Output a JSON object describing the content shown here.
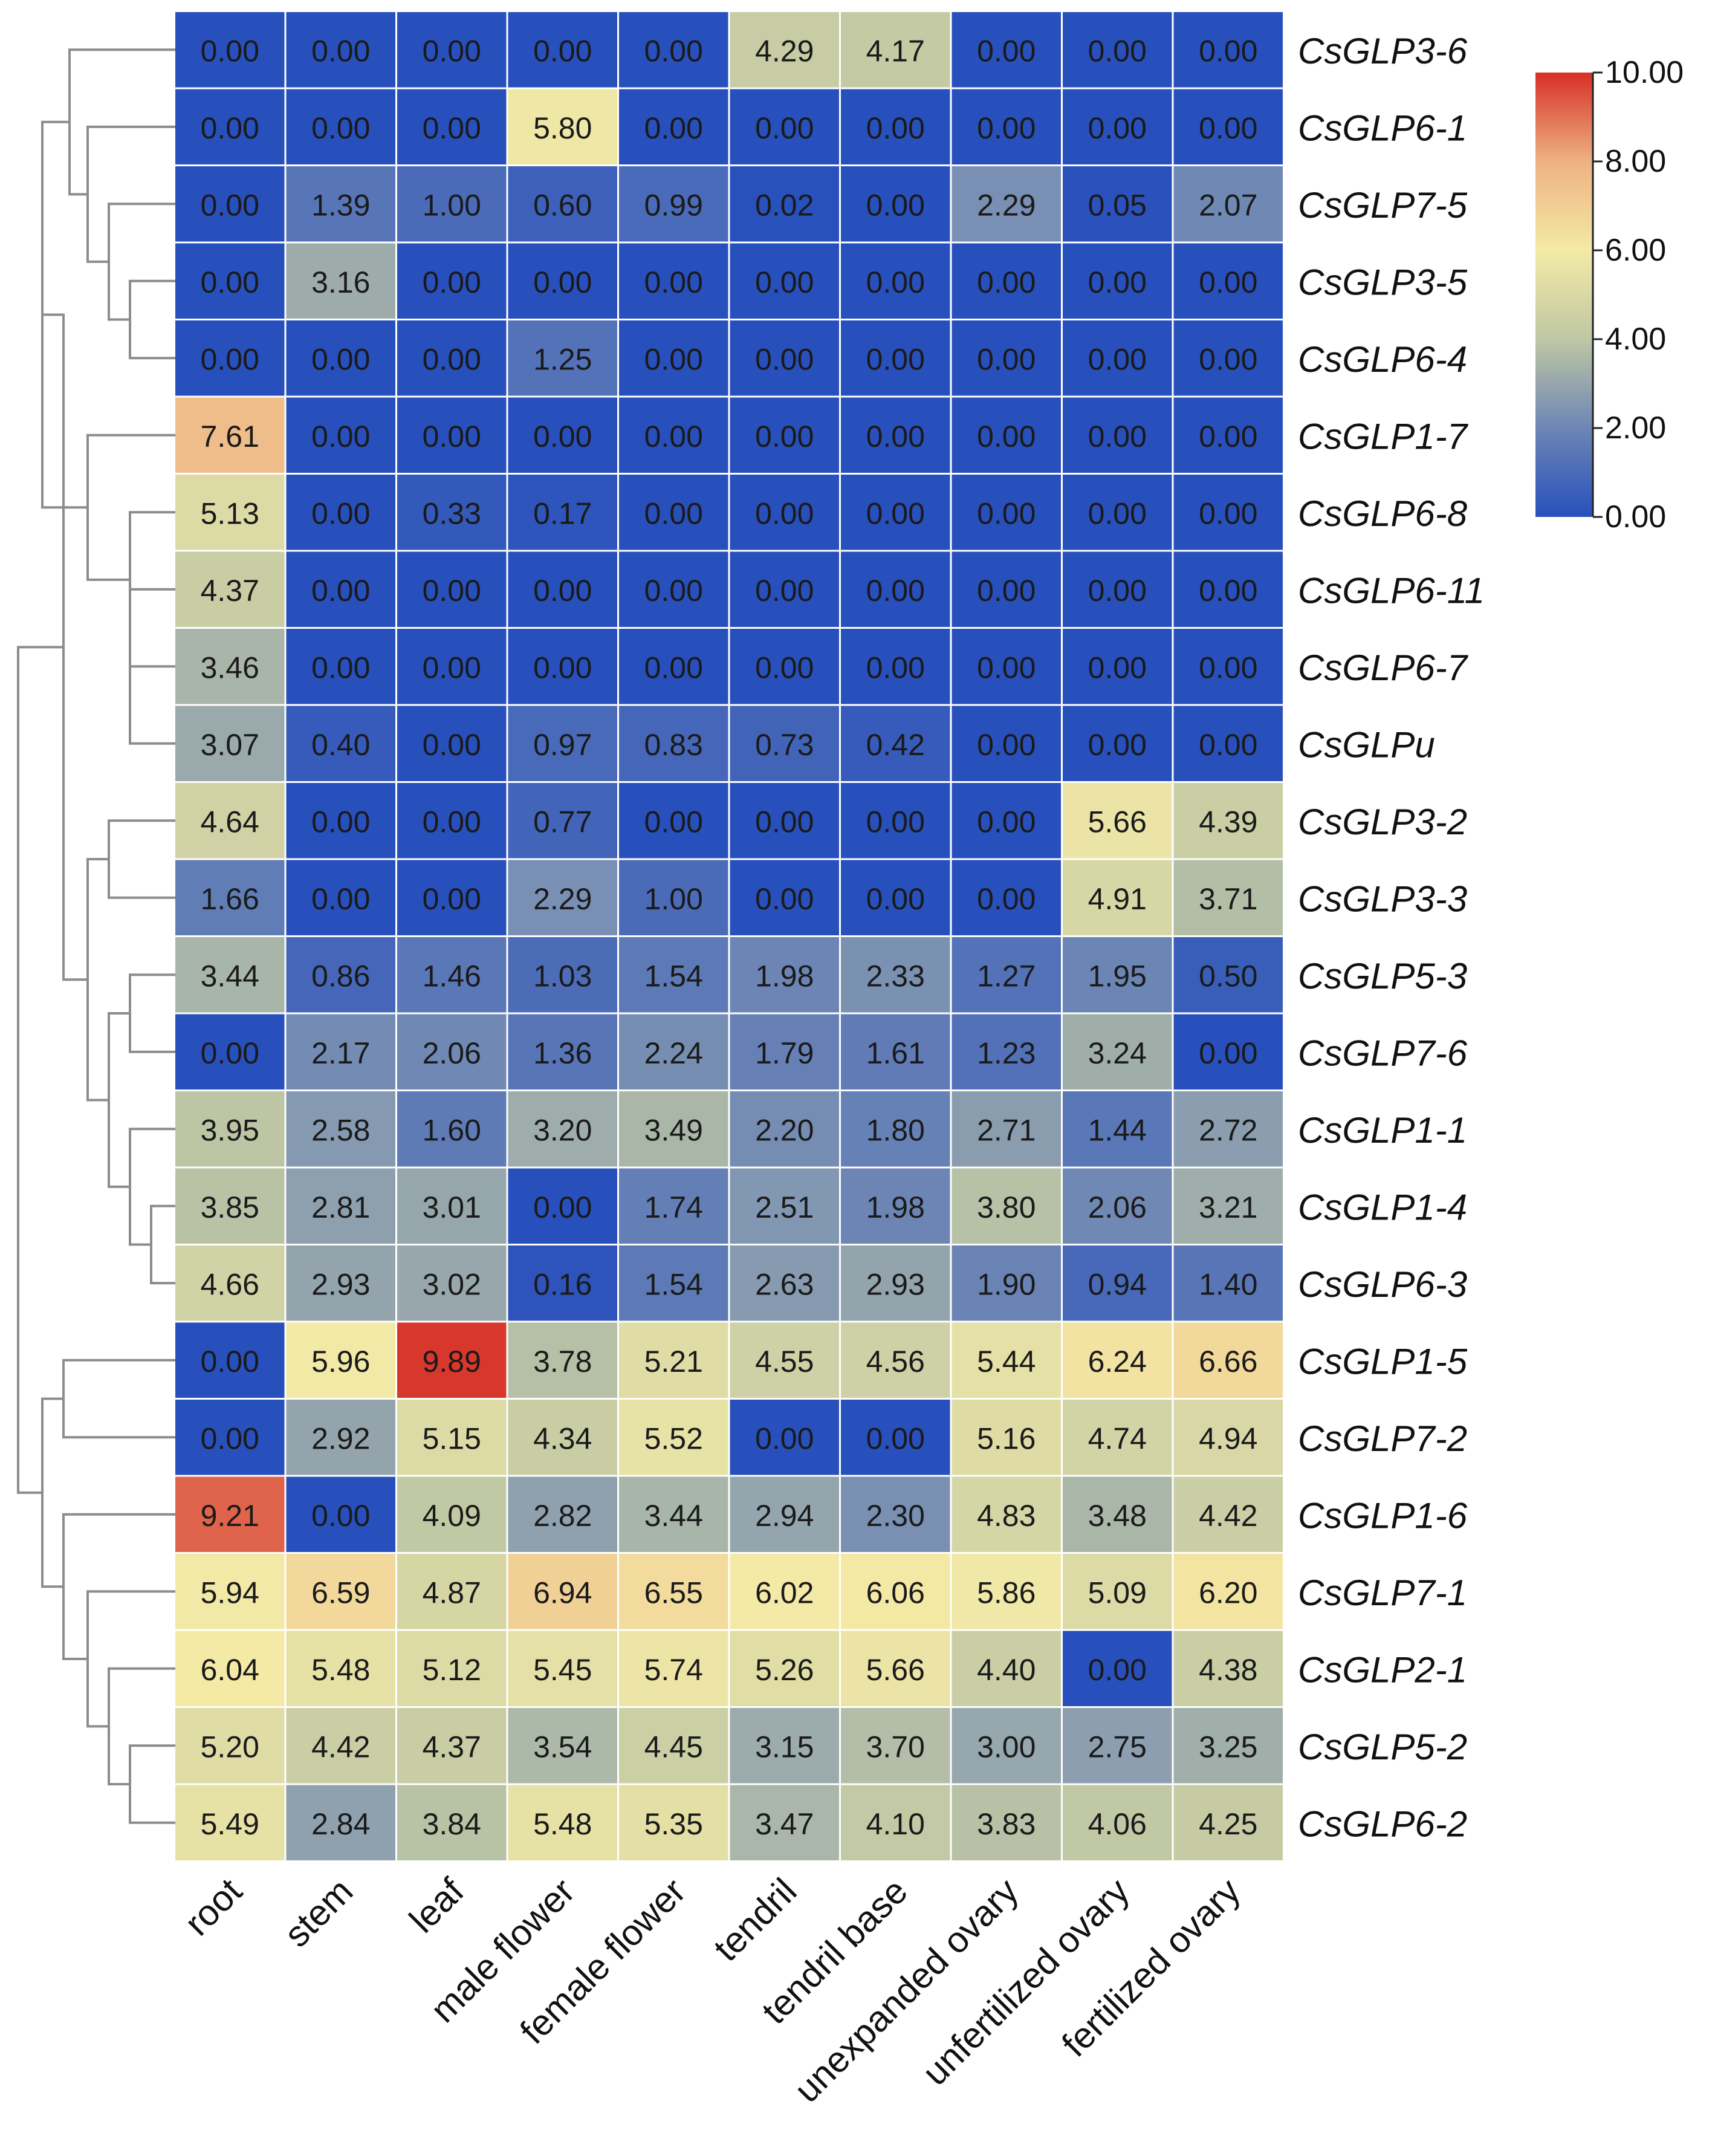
{
  "chart_data": {
    "type": "heatmap",
    "title": "",
    "columns": [
      "root",
      "stem",
      "leaf",
      "male flower",
      "female flower",
      "tendril",
      "tendril base",
      "unexpanded ovary",
      "unfertilized ovary",
      "fertilized ovary"
    ],
    "rows": [
      "CsGLP3-6",
      "CsGLP6-1",
      "CsGLP7-5",
      "CsGLP3-5",
      "CsGLP6-4",
      "CsGLP1-7",
      "CsGLP6-8",
      "CsGLP6-11",
      "CsGLP6-7",
      "CsGLPu",
      "CsGLP3-2",
      "CsGLP3-3",
      "CsGLP5-3",
      "CsGLP7-6",
      "CsGLP1-1",
      "CsGLP1-4",
      "CsGLP6-3",
      "CsGLP1-5",
      "CsGLP7-2",
      "CsGLP1-6",
      "CsGLP7-1",
      "CsGLP2-1",
      "CsGLP5-2",
      "CsGLP6-2"
    ],
    "values": [
      [
        "0.00",
        "0.00",
        "0.00",
        "0.00",
        "0.00",
        "4.29",
        "4.17",
        "0.00",
        "0.00",
        "0.00"
      ],
      [
        "0.00",
        "0.00",
        "0.00",
        "5.80",
        "0.00",
        "0.00",
        "0.00",
        "0.00",
        "0.00",
        "0.00"
      ],
      [
        "0.00",
        "1.39",
        "1.00",
        "0.60",
        "0.99",
        "0.02",
        "0.00",
        "2.29",
        "0.05",
        "2.07"
      ],
      [
        "0.00",
        "3.16",
        "0.00",
        "0.00",
        "0.00",
        "0.00",
        "0.00",
        "0.00",
        "0.00",
        "0.00"
      ],
      [
        "0.00",
        "0.00",
        "0.00",
        "1.25",
        "0.00",
        "0.00",
        "0.00",
        "0.00",
        "0.00",
        "0.00"
      ],
      [
        "7.61",
        "0.00",
        "0.00",
        "0.00",
        "0.00",
        "0.00",
        "0.00",
        "0.00",
        "0.00",
        "0.00"
      ],
      [
        "5.13",
        "0.00",
        "0.33",
        "0.17",
        "0.00",
        "0.00",
        "0.00",
        "0.00",
        "0.00",
        "0.00"
      ],
      [
        "4.37",
        "0.00",
        "0.00",
        "0.00",
        "0.00",
        "0.00",
        "0.00",
        "0.00",
        "0.00",
        "0.00"
      ],
      [
        "3.46",
        "0.00",
        "0.00",
        "0.00",
        "0.00",
        "0.00",
        "0.00",
        "0.00",
        "0.00",
        "0.00"
      ],
      [
        "3.07",
        "0.40",
        "0.00",
        "0.97",
        "0.83",
        "0.73",
        "0.42",
        "0.00",
        "0.00",
        "0.00"
      ],
      [
        "4.64",
        "0.00",
        "0.00",
        "0.77",
        "0.00",
        "0.00",
        "0.00",
        "0.00",
        "5.66",
        "4.39"
      ],
      [
        "1.66",
        "0.00",
        "0.00",
        "2.29",
        "1.00",
        "0.00",
        "0.00",
        "0.00",
        "4.91",
        "3.71"
      ],
      [
        "3.44",
        "0.86",
        "1.46",
        "1.03",
        "1.54",
        "1.98",
        "2.33",
        "1.27",
        "1.95",
        "0.50"
      ],
      [
        "0.00",
        "2.17",
        "2.06",
        "1.36",
        "2.24",
        "1.79",
        "1.61",
        "1.23",
        "3.24",
        "0.00"
      ],
      [
        "3.95",
        "2.58",
        "1.60",
        "3.20",
        "3.49",
        "2.20",
        "1.80",
        "2.71",
        "1.44",
        "2.72"
      ],
      [
        "3.85",
        "2.81",
        "3.01",
        "0.00",
        "1.74",
        "2.51",
        "1.98",
        "3.80",
        "2.06",
        "3.21"
      ],
      [
        "4.66",
        "2.93",
        "3.02",
        "0.16",
        "1.54",
        "2.63",
        "2.93",
        "1.90",
        "0.94",
        "1.40"
      ],
      [
        "0.00",
        "5.96",
        "9.89",
        "3.78",
        "5.21",
        "4.55",
        "4.56",
        "5.44",
        "6.24",
        "6.66"
      ],
      [
        "0.00",
        "2.92",
        "5.15",
        "4.34",
        "5.52",
        "0.00",
        "0.00",
        "5.16",
        "4.74",
        "4.94"
      ],
      [
        "9.21",
        "0.00",
        "4.09",
        "2.82",
        "3.44",
        "2.94",
        "2.30",
        "4.83",
        "3.48",
        "4.42"
      ],
      [
        "5.94",
        "6.59",
        "4.87",
        "6.94",
        "6.55",
        "6.02",
        "6.06",
        "5.86",
        "5.09",
        "6.20"
      ],
      [
        "6.04",
        "5.48",
        "5.12",
        "5.45",
        "5.74",
        "5.26",
        "5.66",
        "4.40",
        "0.00",
        "4.38"
      ],
      [
        "5.20",
        "4.42",
        "4.37",
        "3.54",
        "4.45",
        "3.15",
        "3.70",
        "3.00",
        "2.75",
        "3.25"
      ],
      [
        "5.49",
        "2.84",
        "3.84",
        "5.48",
        "5.35",
        "3.47",
        "4.10",
        "3.83",
        "4.06",
        "4.25"
      ]
    ],
    "color_scale": {
      "min": 0,
      "max": 10,
      "ticks": [
        "0.00",
        "2.00",
        "4.00",
        "6.00",
        "8.00",
        "10.00"
      ],
      "colors": [
        "#2850bc",
        "#6d86b5",
        "#bfc7a4",
        "#f4eaa6",
        "#eeb282",
        "#d73027"
      ]
    },
    "dendrogram": "row-clustering-left",
    "legend_position": "top-right"
  }
}
